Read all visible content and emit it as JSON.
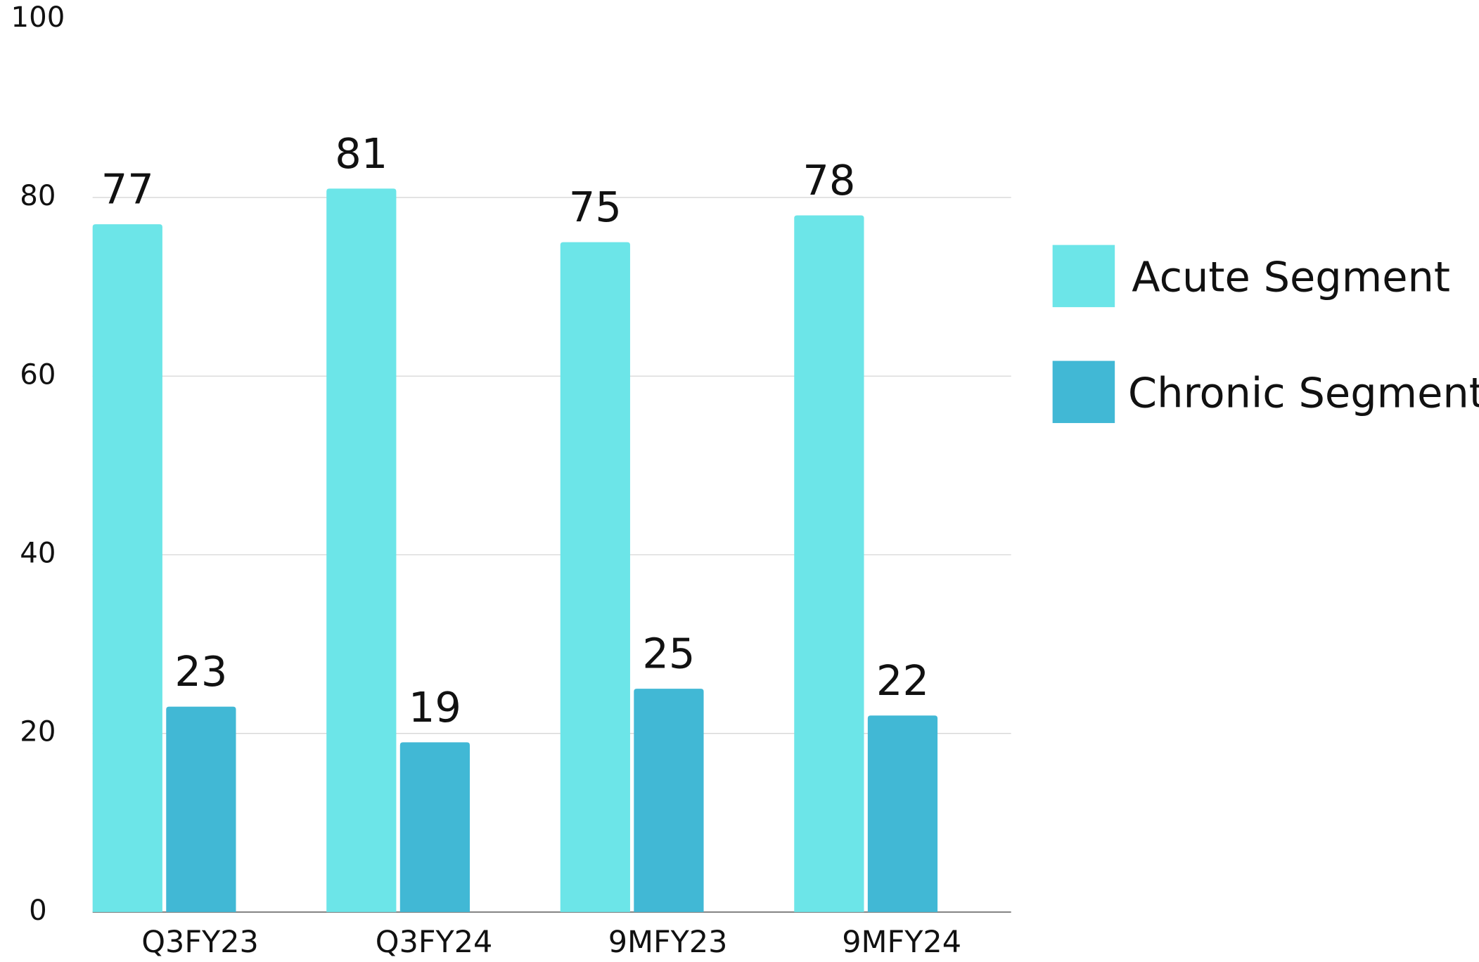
{
  "chart_data": {
    "type": "bar",
    "categories": [
      "Q3FY23",
      "Q3FY24",
      "9MFY23",
      "9MFY24"
    ],
    "series": [
      {
        "name": "Acute Segment",
        "color": "#6ce5e8",
        "values": [
          77,
          81,
          75,
          78
        ]
      },
      {
        "name": "Chronic Segment",
        "color": "#41b8d5",
        "values": [
          23,
          19,
          25,
          22
        ]
      }
    ],
    "ylim": [
      0,
      100
    ],
    "yticks": [
      0,
      20,
      40,
      60,
      80,
      100
    ],
    "grid": true,
    "legend": "right"
  }
}
